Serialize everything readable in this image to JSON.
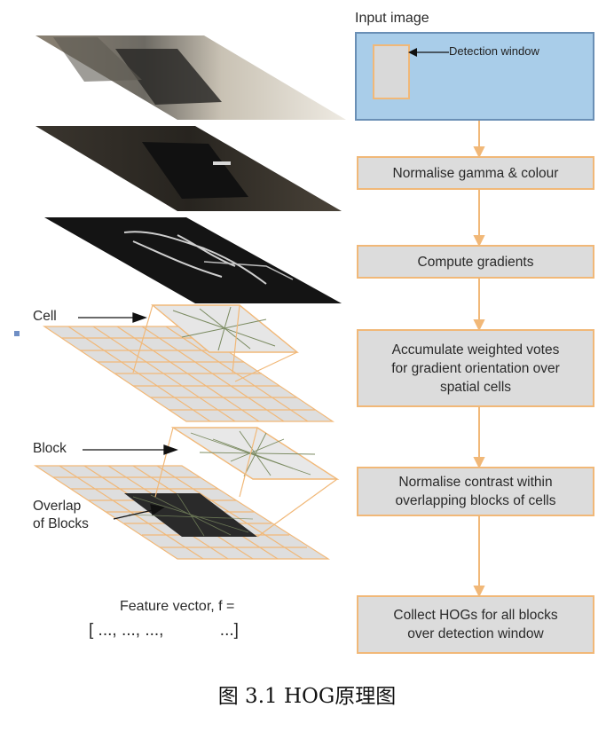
{
  "input": {
    "title": "Input image",
    "window_label": "Detection window"
  },
  "steps": [
    "Normalise gamma & colour",
    "Compute gradients",
    "Accumulate weighted votes\nfor gradient orientation over\nspatial cells",
    "Normalise contrast within\noverlapping blocks of cells",
    "Collect HOGs for all blocks\nover detection window"
  ],
  "labels": {
    "cell": "Cell",
    "block": "Block",
    "overlap": "Overlap\nof Blocks"
  },
  "feature": {
    "title": "Feature vector, f =",
    "vector": "[ ..., ..., ...,            ...]"
  },
  "caption": "图 3.1   HOG原理图",
  "colors": {
    "accent": "#f1b878",
    "box_fill": "#dcdcdc",
    "input_fill": "#a9cde9"
  }
}
